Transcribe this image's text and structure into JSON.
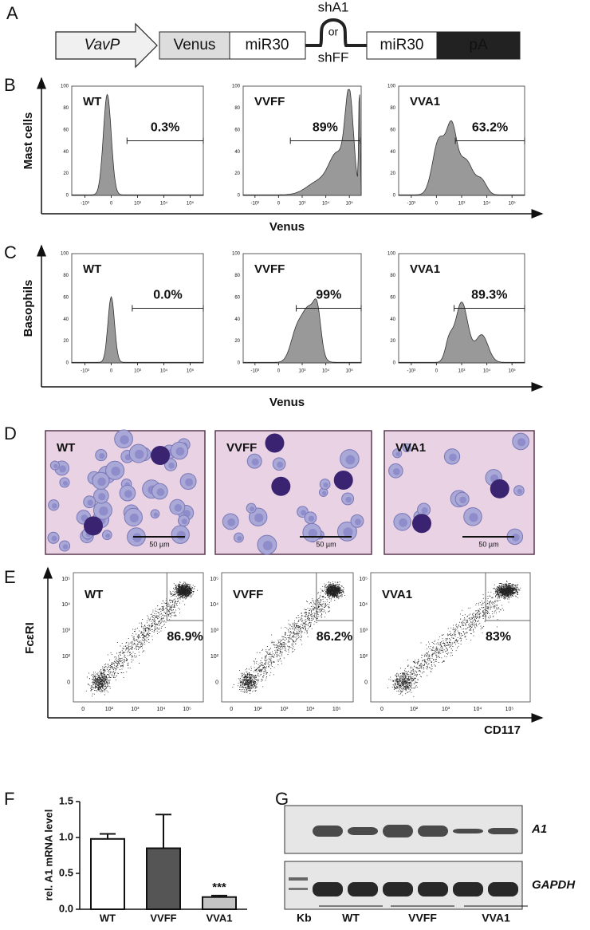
{
  "panels": {
    "A": {
      "letter": "A",
      "construct": {
        "promoter": "VavP",
        "reporter": "Venus",
        "mir30_left": "miR30",
        "hairpin_top": "shA1",
        "hairpin_or": "or",
        "hairpin_bottom": "shFF",
        "mir30_right": "miR30",
        "polyA": "pA"
      }
    },
    "B": {
      "letter": "B",
      "y_label": "Mast cells",
      "x_label": "Venus",
      "y_ticks": [
        "0",
        "20",
        "40",
        "60",
        "80",
        "100"
      ],
      "x_ticks": [
        "-10³",
        "0",
        "10³",
        "10⁴",
        "10⁵"
      ],
      "plots": [
        {
          "label": "WT",
          "gate": "0.3%"
        },
        {
          "label": "VVFF",
          "gate": "89%"
        },
        {
          "label": "VVA1",
          "gate": "63.2%"
        }
      ]
    },
    "C": {
      "letter": "C",
      "y_label": "Basophils",
      "x_label": "Venus",
      "y_ticks": [
        "0",
        "20",
        "40",
        "60",
        "80",
        "100"
      ],
      "x_ticks": [
        "-10³",
        "0",
        "10³",
        "10⁴",
        "10⁵"
      ],
      "plots": [
        {
          "label": "WT",
          "gate": "0.0%"
        },
        {
          "label": "VVFF",
          "gate": "99%"
        },
        {
          "label": "VVA1",
          "gate": "89.3%"
        }
      ]
    },
    "D": {
      "letter": "D",
      "images": [
        {
          "label": "WT",
          "scale": "50 µm"
        },
        {
          "label": "VVFF",
          "scale": "50 µm"
        },
        {
          "label": "VVA1",
          "scale": "50 µm"
        }
      ]
    },
    "E": {
      "letter": "E",
      "y_label": "FcεRI",
      "x_label": "CD117",
      "y_ticks": [
        "10⁵",
        "10⁴",
        "10³",
        "10²",
        "0"
      ],
      "x_ticks": [
        "0",
        "10²",
        "10³",
        "10⁴",
        "10⁵"
      ],
      "plots": [
        {
          "label": "WT",
          "gate": "86.9%"
        },
        {
          "label": "VVFF",
          "gate": "86.2%"
        },
        {
          "label": "VVA1",
          "gate": "83%"
        }
      ]
    },
    "F": {
      "letter": "F"
    },
    "G": {
      "letter": "G",
      "bands": [
        "A1",
        "GAPDH"
      ],
      "ladder": "Kb",
      "groups": [
        "WT",
        "VVFF",
        "VVA1"
      ]
    }
  },
  "chart_data": {
    "type": "bar",
    "y_label": "rel. A1 mRNA level",
    "categories": [
      "WT",
      "VVFF",
      "VVA1"
    ],
    "values": [
      0.98,
      0.85,
      0.17
    ],
    "errors": [
      0.07,
      0.47,
      0.02
    ],
    "colors": [
      "#ffffff",
      "#555555",
      "#c4c4c4"
    ],
    "ylim": [
      0,
      1.5
    ],
    "yticks": [
      {
        "value": 0,
        "label": "0.0"
      },
      0.5,
      {
        "value": 1,
        "label": "1.0"
      },
      {
        "value": 1.5,
        "label": "1.5"
      }
    ],
    "annotation": "***"
  }
}
